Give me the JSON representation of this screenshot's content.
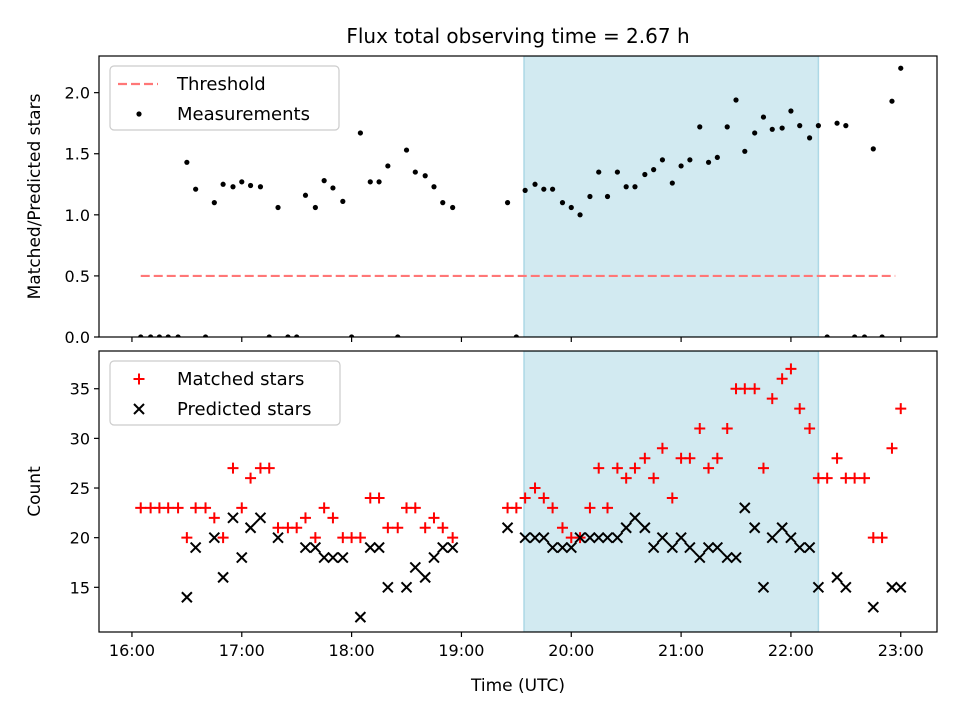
{
  "chart_data": [
    {
      "type": "scatter",
      "title": "Flux total observing time = 2.67 h",
      "xlabel": "",
      "ylabel": "Matched/Predicted stars",
      "xlim": [
        15.7,
        23.33
      ],
      "ylim": [
        0.0,
        2.3
      ],
      "yticks": [
        0.0,
        0.5,
        1.0,
        1.5,
        2.0
      ],
      "ytick_labels": [
        "0.0",
        "0.5",
        "1.0",
        "1.5",
        "2.0"
      ],
      "grid": false,
      "legend_position": "upper-left",
      "shaded_interval": [
        19.57,
        22.25
      ],
      "shade_color": "#add8e6",
      "threshold": {
        "name": "Threshold",
        "value": 0.5,
        "x_range": [
          16.08,
          22.95
        ],
        "color": "#ff7777",
        "style": "dashed"
      },
      "series": [
        {
          "name": "Measurements",
          "color": "#000000",
          "marker": "dot",
          "points": [
            [
              16.08,
              0.0
            ],
            [
              16.17,
              0.0
            ],
            [
              16.25,
              0.0
            ],
            [
              16.33,
              0.0
            ],
            [
              16.42,
              0.0
            ],
            [
              16.5,
              1.43
            ],
            [
              16.58,
              1.21
            ],
            [
              16.67,
              0.0
            ],
            [
              16.75,
              1.1
            ],
            [
              16.83,
              1.25
            ],
            [
              16.92,
              1.23
            ],
            [
              17.0,
              1.27
            ],
            [
              17.08,
              1.24
            ],
            [
              17.17,
              1.23
            ],
            [
              17.25,
              0.0
            ],
            [
              17.33,
              1.06
            ],
            [
              17.42,
              0.0
            ],
            [
              17.5,
              0.0
            ],
            [
              17.58,
              1.16
            ],
            [
              17.67,
              1.06
            ],
            [
              17.75,
              1.28
            ],
            [
              17.83,
              1.22
            ],
            [
              17.92,
              1.11
            ],
            [
              18.0,
              0.0
            ],
            [
              18.08,
              1.67
            ],
            [
              18.17,
              1.27
            ],
            [
              18.25,
              1.27
            ],
            [
              18.33,
              1.4
            ],
            [
              18.42,
              0.0
            ],
            [
              18.5,
              1.53
            ],
            [
              18.58,
              1.35
            ],
            [
              18.67,
              1.32
            ],
            [
              18.75,
              1.23
            ],
            [
              18.83,
              1.1
            ],
            [
              18.92,
              1.06
            ],
            [
              19.42,
              1.1
            ],
            [
              19.5,
              0.0
            ],
            [
              19.58,
              1.2
            ],
            [
              19.67,
              1.25
            ],
            [
              19.75,
              1.21
            ],
            [
              19.83,
              1.21
            ],
            [
              19.92,
              1.1
            ],
            [
              20.0,
              1.06
            ],
            [
              20.08,
              1.0
            ],
            [
              20.17,
              1.15
            ],
            [
              20.25,
              1.35
            ],
            [
              20.33,
              1.15
            ],
            [
              20.42,
              1.35
            ],
            [
              20.5,
              1.23
            ],
            [
              20.58,
              1.23
            ],
            [
              20.67,
              1.33
            ],
            [
              20.75,
              1.37
            ],
            [
              20.83,
              1.45
            ],
            [
              20.92,
              1.26
            ],
            [
              21.0,
              1.4
            ],
            [
              21.08,
              1.45
            ],
            [
              21.17,
              1.72
            ],
            [
              21.25,
              1.43
            ],
            [
              21.33,
              1.47
            ],
            [
              21.42,
              1.72
            ],
            [
              21.5,
              1.94
            ],
            [
              21.58,
              1.52
            ],
            [
              21.67,
              1.67
            ],
            [
              21.75,
              1.8
            ],
            [
              21.83,
              1.7
            ],
            [
              21.92,
              1.71
            ],
            [
              22.0,
              1.85
            ],
            [
              22.08,
              1.73
            ],
            [
              22.17,
              1.63
            ],
            [
              22.25,
              1.73
            ],
            [
              22.33,
              0.0
            ],
            [
              22.42,
              1.75
            ],
            [
              22.5,
              1.73
            ],
            [
              22.58,
              0.0
            ],
            [
              22.67,
              0.0
            ],
            [
              22.75,
              1.54
            ],
            [
              22.83,
              0.0
            ],
            [
              22.92,
              1.93
            ],
            [
              23.0,
              2.2
            ]
          ]
        }
      ]
    },
    {
      "type": "scatter",
      "title": "",
      "xlabel": "Time (UTC)",
      "ylabel": "Count",
      "xlim": [
        15.7,
        23.33
      ],
      "ylim": [
        10.5,
        38.8
      ],
      "yticks": [
        15,
        20,
        25,
        30,
        35
      ],
      "ytick_labels": [
        "15",
        "20",
        "25",
        "30",
        "35"
      ],
      "xticks": [
        16,
        17,
        18,
        19,
        20,
        21,
        22,
        23
      ],
      "xtick_labels": [
        "16:00",
        "17:00",
        "18:00",
        "19:00",
        "20:00",
        "21:00",
        "22:00",
        "23:00"
      ],
      "grid": false,
      "legend_position": "upper-left",
      "shaded_interval": [
        19.57,
        22.25
      ],
      "shade_color": "#add8e6",
      "series": [
        {
          "name": "Matched stars",
          "color": "#ff0000",
          "marker": "plus",
          "points": [
            [
              16.08,
              23
            ],
            [
              16.17,
              23
            ],
            [
              16.25,
              23
            ],
            [
              16.33,
              23
            ],
            [
              16.42,
              23
            ],
            [
              16.5,
              20
            ],
            [
              16.58,
              23
            ],
            [
              16.67,
              23
            ],
            [
              16.75,
              22
            ],
            [
              16.83,
              20
            ],
            [
              16.92,
              27
            ],
            [
              17.0,
              23
            ],
            [
              17.08,
              26
            ],
            [
              17.17,
              27
            ],
            [
              17.25,
              27
            ],
            [
              17.33,
              21
            ],
            [
              17.42,
              21
            ],
            [
              17.5,
              21
            ],
            [
              17.58,
              22
            ],
            [
              17.67,
              20
            ],
            [
              17.75,
              23
            ],
            [
              17.83,
              22
            ],
            [
              17.92,
              20
            ],
            [
              18.0,
              20
            ],
            [
              18.08,
              20
            ],
            [
              18.17,
              24
            ],
            [
              18.25,
              24
            ],
            [
              18.33,
              21
            ],
            [
              18.42,
              21
            ],
            [
              18.5,
              23
            ],
            [
              18.58,
              23
            ],
            [
              18.67,
              21
            ],
            [
              18.75,
              22
            ],
            [
              18.83,
              21
            ],
            [
              18.92,
              20
            ],
            [
              19.42,
              23
            ],
            [
              19.5,
              23
            ],
            [
              19.58,
              24
            ],
            [
              19.67,
              25
            ],
            [
              19.75,
              24
            ],
            [
              19.83,
              23
            ],
            [
              19.92,
              21
            ],
            [
              20.0,
              20
            ],
            [
              20.08,
              20
            ],
            [
              20.17,
              23
            ],
            [
              20.25,
              27
            ],
            [
              20.33,
              23
            ],
            [
              20.42,
              27
            ],
            [
              20.5,
              26
            ],
            [
              20.58,
              27
            ],
            [
              20.67,
              28
            ],
            [
              20.75,
              26
            ],
            [
              20.83,
              29
            ],
            [
              20.92,
              24
            ],
            [
              21.0,
              28
            ],
            [
              21.08,
              28
            ],
            [
              21.17,
              31
            ],
            [
              21.25,
              27
            ],
            [
              21.33,
              28
            ],
            [
              21.42,
              31
            ],
            [
              21.5,
              35
            ],
            [
              21.58,
              35
            ],
            [
              21.67,
              35
            ],
            [
              21.75,
              27
            ],
            [
              21.83,
              34
            ],
            [
              21.92,
              36
            ],
            [
              22.0,
              37
            ],
            [
              22.08,
              33
            ],
            [
              22.17,
              31
            ],
            [
              22.25,
              26
            ],
            [
              22.33,
              26
            ],
            [
              22.42,
              28
            ],
            [
              22.5,
              26
            ],
            [
              22.58,
              26
            ],
            [
              22.67,
              26
            ],
            [
              22.75,
              20
            ],
            [
              22.83,
              20
            ],
            [
              22.92,
              29
            ],
            [
              23.0,
              33
            ]
          ]
        },
        {
          "name": "Predicted stars",
          "color": "#000000",
          "marker": "x",
          "points": [
            [
              16.5,
              14
            ],
            [
              16.58,
              19
            ],
            [
              16.75,
              20
            ],
            [
              16.83,
              16
            ],
            [
              16.92,
              22
            ],
            [
              17.0,
              18
            ],
            [
              17.08,
              21
            ],
            [
              17.17,
              22
            ],
            [
              17.33,
              20
            ],
            [
              17.58,
              19
            ],
            [
              17.67,
              19
            ],
            [
              17.75,
              18
            ],
            [
              17.83,
              18
            ],
            [
              17.92,
              18
            ],
            [
              18.08,
              12
            ],
            [
              18.17,
              19
            ],
            [
              18.25,
              19
            ],
            [
              18.33,
              15
            ],
            [
              18.5,
              15
            ],
            [
              18.58,
              17
            ],
            [
              18.67,
              16
            ],
            [
              18.75,
              18
            ],
            [
              18.83,
              19
            ],
            [
              18.92,
              19
            ],
            [
              19.42,
              21
            ],
            [
              19.58,
              20
            ],
            [
              19.67,
              20
            ],
            [
              19.75,
              20
            ],
            [
              19.83,
              19
            ],
            [
              19.92,
              19
            ],
            [
              20.0,
              19
            ],
            [
              20.08,
              20
            ],
            [
              20.17,
              20
            ],
            [
              20.25,
              20
            ],
            [
              20.33,
              20
            ],
            [
              20.42,
              20
            ],
            [
              20.5,
              21
            ],
            [
              20.58,
              22
            ],
            [
              20.67,
              21
            ],
            [
              20.75,
              19
            ],
            [
              20.83,
              20
            ],
            [
              20.92,
              19
            ],
            [
              21.0,
              20
            ],
            [
              21.08,
              19
            ],
            [
              21.17,
              18
            ],
            [
              21.25,
              19
            ],
            [
              21.33,
              19
            ],
            [
              21.42,
              18
            ],
            [
              21.5,
              18
            ],
            [
              21.58,
              23
            ],
            [
              21.67,
              21
            ],
            [
              21.75,
              15
            ],
            [
              21.83,
              20
            ],
            [
              21.92,
              21
            ],
            [
              22.0,
              20
            ],
            [
              22.08,
              19
            ],
            [
              22.17,
              19
            ],
            [
              22.25,
              15
            ],
            [
              22.42,
              16
            ],
            [
              22.5,
              15
            ],
            [
              22.75,
              13
            ],
            [
              22.92,
              15
            ],
            [
              23.0,
              15
            ]
          ]
        }
      ]
    }
  ]
}
